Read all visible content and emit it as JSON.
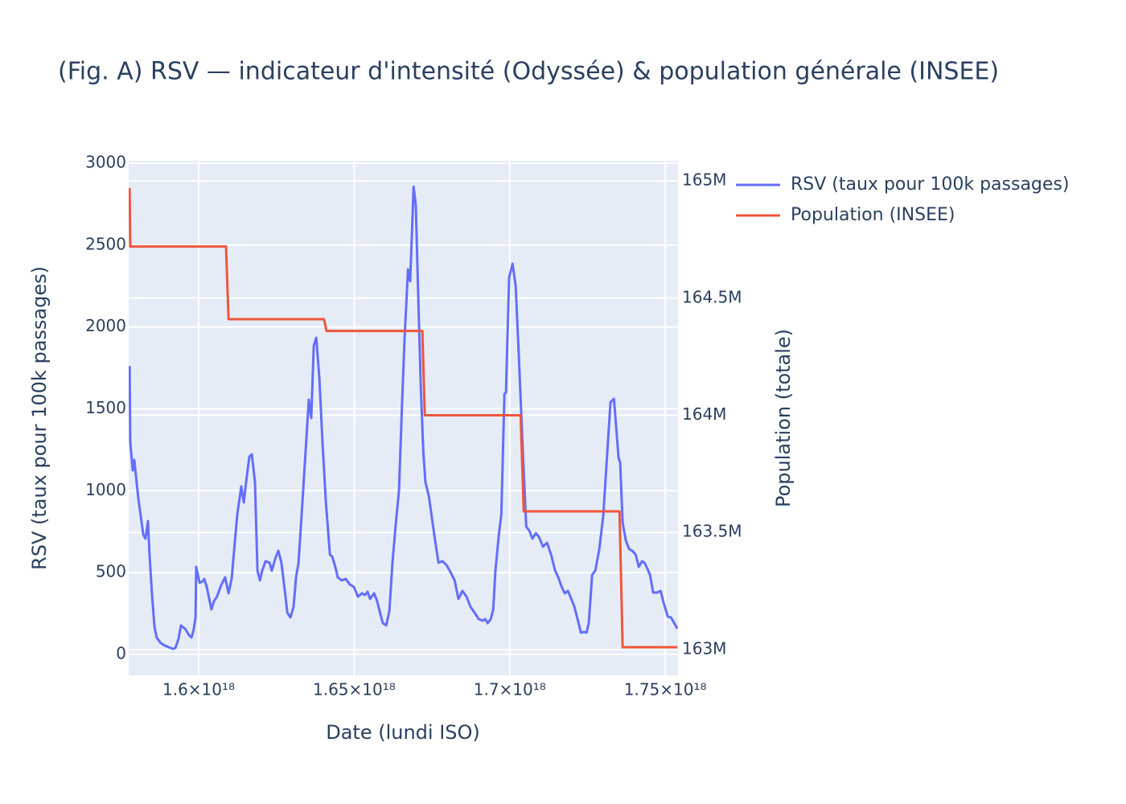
{
  "chart_data": {
    "type": "line",
    "title": "(Fig. A) RSV — indicateur d'intensité (Odyssée) & population générale (INSEE)",
    "x_label": "Date (lundi ISO)",
    "y_label": "RSV (taux pour 100k passages)",
    "y2_label": "Population (totale)",
    "xlim": [
      1.5775e+18,
      1.7541e+18
    ],
    "xticks": [
      {
        "value": 1.6e+18,
        "label": "1.6×10¹⁸"
      },
      {
        "value": 1.65e+18,
        "label": "1.65×10¹⁸"
      },
      {
        "value": 1.7e+18,
        "label": "1.7×10¹⁸"
      },
      {
        "value": 1.75e+18,
        "label": "1.75×10¹⁸"
      }
    ],
    "ylim": [
      -128,
      3015
    ],
    "yticks": [
      0,
      500,
      1000,
      1500,
      2000,
      2500,
      3000
    ],
    "y2lim": [
      162890000,
      165086000
    ],
    "y2ticks": [
      {
        "value": 163000000,
        "label": "163M"
      },
      {
        "value": 163500000,
        "label": "163.5M"
      },
      {
        "value": 164000000,
        "label": "164M"
      },
      {
        "value": 164500000,
        "label": "164.5M"
      },
      {
        "value": 165000000,
        "label": "165M"
      }
    ],
    "grid": true,
    "legend": "top-right",
    "series": [
      {
        "name": "RSV (taux pour 100k passages)",
        "color": "#636efa",
        "x": [
          1.5778e+18,
          1.578e+18,
          1.5788e+18,
          1.5793e+18,
          1.5806e+18,
          1.5822e+18,
          1.5829e+18,
          1.5837e+18,
          1.5842e+18,
          1.585e+18,
          1.5858e+18,
          1.5865e+18,
          1.5878e+18,
          1.5891e+18,
          1.5904e+18,
          1.5917e+18,
          1.5925e+18,
          1.5935e+18,
          1.5943e+18,
          1.5956e+18,
          1.5969e+18,
          1.5977e+18,
          1.5984e+18,
          1.599e+18,
          1.5992e+18,
          1.6003e+18,
          1.6013e+18,
          1.6018e+18,
          1.6026e+18,
          1.6034e+18,
          1.6041e+18,
          1.6049e+18,
          1.6059e+18,
          1.6072e+18,
          1.6085e+18,
          1.6096e+18,
          1.6106e+18,
          1.6124e+18,
          1.6137e+18,
          1.6145e+18,
          1.6153e+18,
          1.6163e+18,
          1.6171e+18,
          1.6181e+18,
          1.6189e+18,
          1.6197e+18,
          1.6204e+18,
          1.6215e+18,
          1.6228e+18,
          1.6235e+18,
          1.6246e+18,
          1.6256e+18,
          1.6266e+18,
          1.6277e+18,
          1.6285e+18,
          1.6295e+18,
          1.6305e+18,
          1.6313e+18,
          1.6321e+18,
          1.6331e+18,
          1.6344e+18,
          1.6354e+18,
          1.6362e+18,
          1.637e+18,
          1.6378e+18,
          1.6388e+18,
          1.6398e+18,
          1.6409e+18,
          1.6422e+18,
          1.6429e+18,
          1.644e+18,
          1.6447e+18,
          1.646e+18,
          1.6473e+18,
          1.6486e+18,
          1.6499e+18,
          1.6512e+18,
          1.6525e+18,
          1.6535e+18,
          1.6543e+18,
          1.6551e+18,
          1.6564e+18,
          1.6574e+18,
          1.6585e+18,
          1.6592e+18,
          1.6603e+18,
          1.6613e+18,
          1.6623e+18,
          1.6634e+18,
          1.6644e+18,
          1.6654e+18,
          1.6662e+18,
          1.6673e+18,
          1.668e+18,
          1.6691e+18,
          1.6698e+18,
          1.6706e+18,
          1.6714e+18,
          1.6722e+18,
          1.6729e+18,
          1.674e+18,
          1.675e+18,
          1.676e+18,
          1.6771e+18,
          1.6784e+18,
          1.6797e+18,
          1.681e+18,
          1.6823e+18,
          1.6835e+18,
          1.6848e+18,
          1.6861e+18,
          1.6874e+18,
          1.6887e+18,
          1.69e+18,
          1.6913e+18,
          1.6921e+18,
          1.6929e+18,
          1.6939e+18,
          1.6947e+18,
          1.6954e+18,
          1.6965e+18,
          1.6973e+18,
          1.6983e+18,
          1.6988e+18,
          1.6998e+18,
          1.7009e+18,
          1.7019e+18,
          1.7029e+18,
          1.7042e+18,
          1.7053e+18,
          1.7063e+18,
          1.7073e+18,
          1.7084e+18,
          1.7094e+18,
          1.7107e+18,
          1.712e+18,
          1.7133e+18,
          1.7146e+18,
          1.7156e+18,
          1.7167e+18,
          1.7177e+18,
          1.7187e+18,
          1.7198e+18,
          1.7208e+18,
          1.7218e+18,
          1.7229e+18,
          1.7239e+18,
          1.7247e+18,
          1.7254e+18,
          1.7265e+18,
          1.7275e+18,
          1.7288e+18,
          1.7301e+18,
          1.7314e+18,
          1.7324e+18,
          1.7335e+18,
          1.7342e+18,
          1.735e+18,
          1.7355e+18,
          1.7363e+18,
          1.7373e+18,
          1.7384e+18,
          1.7394e+18,
          1.7405e+18,
          1.7415e+18,
          1.7425e+18,
          1.7433e+18,
          1.7441e+18,
          1.7451e+18,
          1.7461e+18,
          1.7474e+18,
          1.7485e+18,
          1.7495e+18,
          1.7508e+18,
          1.7518e+18,
          1.7529e+18,
          1.7539e+18
        ],
        "values": [
          1762,
          1296,
          1124,
          1188,
          952,
          731,
          707,
          815,
          609,
          363,
          167,
          103,
          69,
          54,
          44,
          34,
          39,
          93,
          177,
          157,
          118,
          103,
          152,
          226,
          535,
          437,
          447,
          461,
          412,
          339,
          275,
          324,
          353,
          422,
          471,
          373,
          461,
          854,
          1026,
          928,
          1060,
          1208,
          1222,
          1051,
          511,
          452,
          511,
          569,
          560,
          511,
          584,
          633,
          560,
          388,
          255,
          226,
          290,
          471,
          560,
          854,
          1247,
          1556,
          1443,
          1885,
          1934,
          1689,
          1296,
          928,
          609,
          599,
          530,
          471,
          452,
          461,
          427,
          412,
          353,
          373,
          363,
          383,
          339,
          373,
          324,
          240,
          191,
          177,
          265,
          560,
          805,
          1001,
          1541,
          1934,
          2352,
          2279,
          2857,
          2744,
          2180,
          1640,
          1247,
          1051,
          967,
          830,
          697,
          560,
          569,
          545,
          501,
          452,
          339,
          388,
          353,
          290,
          255,
          216,
          206,
          216,
          191,
          216,
          275,
          511,
          731,
          854,
          1591,
          1600,
          2302,
          2386,
          2253,
          1836,
          1247,
          781,
          756,
          707,
          741,
          717,
          658,
          682,
          609,
          511,
          471,
          412,
          373,
          388,
          339,
          290,
          216,
          133,
          137,
          133,
          191,
          486,
          511,
          643,
          854,
          1247,
          1541,
          1561,
          1394,
          1198,
          1173,
          805,
          697,
          643,
          633,
          609,
          535,
          569,
          560,
          530,
          486,
          378,
          378,
          388,
          314,
          231,
          226,
          191,
          157
        ]
      },
      {
        "name": "Population (INSEE)",
        "color": "#EF553B",
        "axis": "y2",
        "x": [
          1.5778e+18,
          1.578e+18,
          1.6088e+18,
          1.6096e+18,
          1.6403e+18,
          1.6411e+18,
          1.6719e+18,
          1.6727e+18,
          1.7035e+18,
          1.7045e+18,
          1.7353e+18,
          1.7363e+18,
          1.7539e+18
        ],
        "values": [
          164970000,
          164720000,
          164720000,
          164410000,
          164410000,
          164360000,
          164360000,
          164000000,
          164000000,
          163590000,
          163590000,
          163010000,
          163010000
        ]
      }
    ]
  }
}
